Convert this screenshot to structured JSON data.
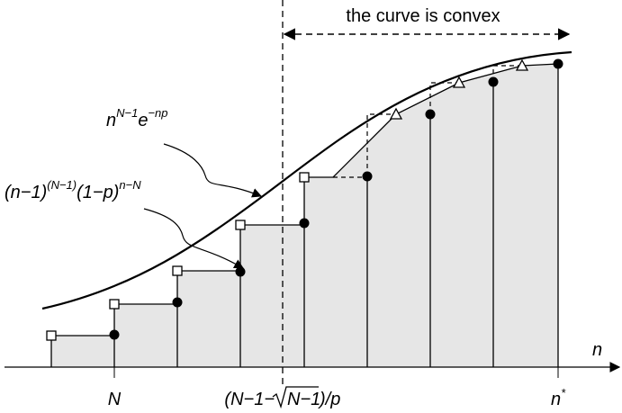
{
  "labels": {
    "convex": "the curve is convex",
    "curve": {
      "base": "n",
      "exp1": "N−1",
      "factor": "e",
      "exp2": "−np"
    },
    "step": {
      "base": "(n−1)",
      "exp1": "(N−1)",
      "factor": "(1−p)",
      "exp2": "n−N"
    },
    "axis": "n",
    "tick_N": "N",
    "tick_mid": {
      "open": "(N−1−",
      "radicand": "N−1",
      "close": ")/p"
    },
    "tick_nstar": {
      "base": "n",
      "sup": "*"
    }
  }
}
